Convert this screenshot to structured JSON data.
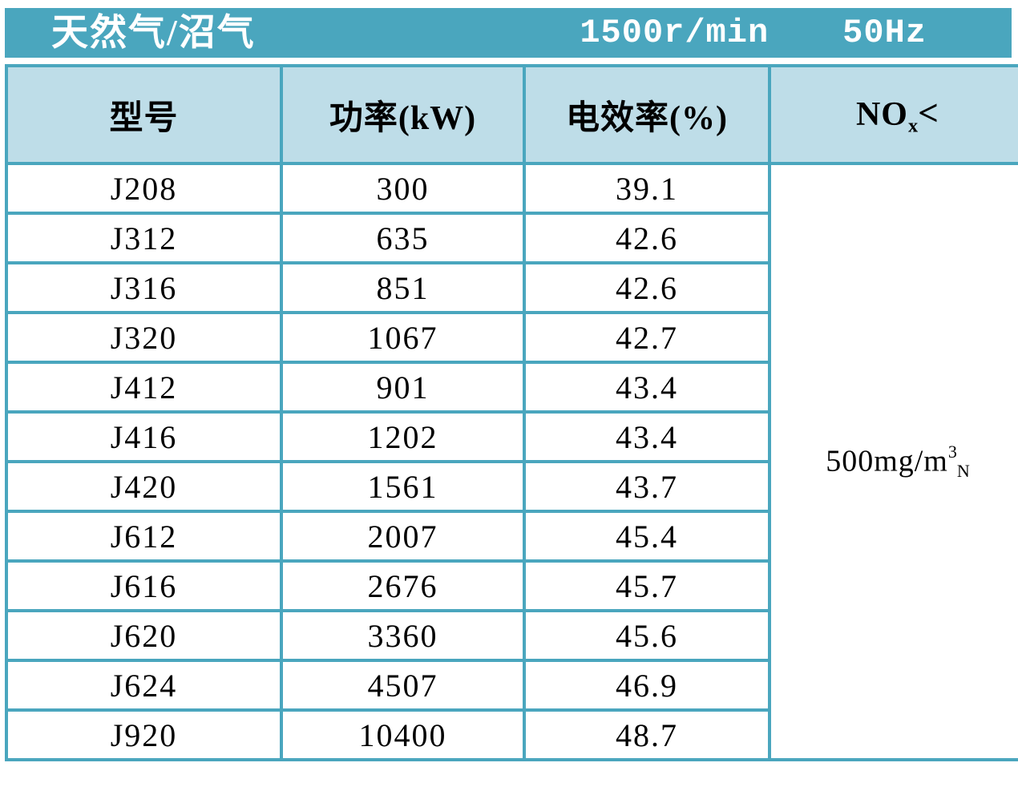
{
  "title_bar": {
    "product": "天然气/沼气",
    "speed": "1500r/min",
    "frequency": "50Hz"
  },
  "table": {
    "headers": {
      "model": "型号",
      "power": "功率(kW)",
      "efficiency": "电效率(%)",
      "nox": {
        "base": "NO",
        "sub": "x",
        "symbol": "<"
      }
    },
    "rows": [
      {
        "model": "J208",
        "power": "300",
        "efficiency": "39.1"
      },
      {
        "model": "J312",
        "power": "635",
        "efficiency": "42.6"
      },
      {
        "model": "J316",
        "power": "851",
        "efficiency": "42.6"
      },
      {
        "model": "J320",
        "power": "1067",
        "efficiency": "42.7"
      },
      {
        "model": "J412",
        "power": "901",
        "efficiency": "43.4"
      },
      {
        "model": "J416",
        "power": "1202",
        "efficiency": "43.4"
      },
      {
        "model": "J420",
        "power": "1561",
        "efficiency": "43.7"
      },
      {
        "model": "J612",
        "power": "2007",
        "efficiency": "45.4"
      },
      {
        "model": "J616",
        "power": "2676",
        "efficiency": "45.7"
      },
      {
        "model": "J620",
        "power": "3360",
        "efficiency": "45.6"
      },
      {
        "model": "J624",
        "power": "4507",
        "efficiency": "46.9"
      },
      {
        "model": "J920",
        "power": "10400",
        "efficiency": "48.7"
      }
    ],
    "nox_limit": {
      "base": "500mg/m",
      "sup": "3",
      "sub": "N"
    }
  },
  "colors": {
    "accent": "#4aa6be",
    "header_bg": "#bedde8",
    "title_text": "#ffffff",
    "text": "#000000"
  }
}
